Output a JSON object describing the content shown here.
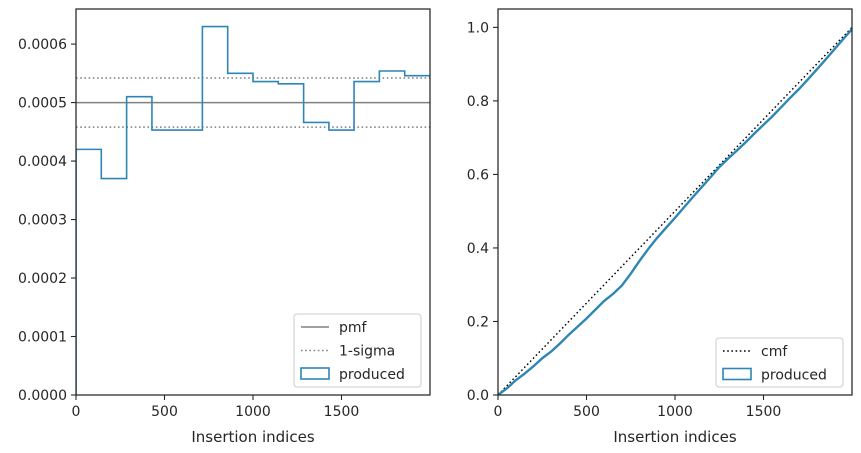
{
  "chart_data": [
    {
      "type": "line",
      "xlabel": "Insertion indices",
      "ylabel": "",
      "xlim": [
        0,
        2000
      ],
      "ylim": [
        0,
        0.00066
      ],
      "xticks": [
        0,
        500,
        1000,
        1500
      ],
      "xtick_labels": [
        "0",
        "500",
        "1000",
        "1500"
      ],
      "yticks": [
        0,
        0.0001,
        0.0002,
        0.0003,
        0.0004,
        0.0005,
        0.0006
      ],
      "ytick_labels": [
        "0.0000",
        "0.0001",
        "0.0002",
        "0.0003",
        "0.0004",
        "0.0005",
        "0.0006"
      ],
      "grid": false,
      "legend_position": "lower-right",
      "series": [
        {
          "name": "pmf",
          "kind": "hline",
          "y": 0.0005,
          "color": "#808080",
          "style": "solid"
        },
        {
          "name": "1-sigma",
          "kind": "hlines",
          "y": [
            0.000458,
            0.000542
          ],
          "color": "#808080",
          "style": "dotted"
        },
        {
          "name": "produced",
          "kind": "step-histogram",
          "color": "#2e86b5",
          "bin_edges": [
            0,
            143,
            286,
            429,
            571,
            714,
            857,
            1000,
            1143,
            1286,
            1429,
            1571,
            1714,
            1857,
            2000
          ],
          "values": [
            0.00042,
            0.00037,
            0.00051,
            0.000453,
            0.000453,
            0.00063,
            0.00055,
            0.000536,
            0.000532,
            0.000466,
            0.000453,
            0.000536,
            0.000554,
            0.000546
          ]
        }
      ]
    },
    {
      "type": "line",
      "xlabel": "Insertion indices",
      "ylabel": "",
      "xlim": [
        0,
        2000
      ],
      "ylim": [
        0,
        1.05
      ],
      "xticks": [
        0,
        500,
        1000,
        1500
      ],
      "xtick_labels": [
        "0",
        "500",
        "1000",
        "1500"
      ],
      "yticks": [
        0,
        0.2,
        0.4,
        0.6,
        0.8,
        1.0
      ],
      "ytick_labels": [
        "0.0",
        "0.2",
        "0.4",
        "0.6",
        "0.8",
        "1.0"
      ],
      "grid": false,
      "legend_position": "lower-right",
      "series": [
        {
          "name": "cmf",
          "kind": "line",
          "color": "#000000",
          "style": "dotted",
          "x": [
            0,
            2000
          ],
          "y": [
            0,
            1.0
          ]
        },
        {
          "name": "produced",
          "kind": "cumulative-line",
          "color": "#2e86b5",
          "x": [
            0,
            50,
            100,
            150,
            200,
            250,
            300,
            350,
            400,
            450,
            500,
            550,
            600,
            650,
            700,
            750,
            800,
            850,
            900,
            950,
            1000,
            1050,
            1100,
            1150,
            1200,
            1250,
            1300,
            1350,
            1400,
            1450,
            1500,
            1550,
            1600,
            1650,
            1700,
            1750,
            1800,
            1850,
            1900,
            1950,
            2000
          ],
          "y": [
            0,
            0.018,
            0.04,
            0.058,
            0.078,
            0.1,
            0.118,
            0.14,
            0.164,
            0.186,
            0.208,
            0.232,
            0.256,
            0.275,
            0.298,
            0.33,
            0.365,
            0.398,
            0.428,
            0.455,
            0.482,
            0.51,
            0.538,
            0.565,
            0.592,
            0.62,
            0.643,
            0.665,
            0.688,
            0.712,
            0.735,
            0.758,
            0.783,
            0.808,
            0.832,
            0.858,
            0.885,
            0.912,
            0.94,
            0.968,
            0.995
          ]
        }
      ]
    }
  ]
}
